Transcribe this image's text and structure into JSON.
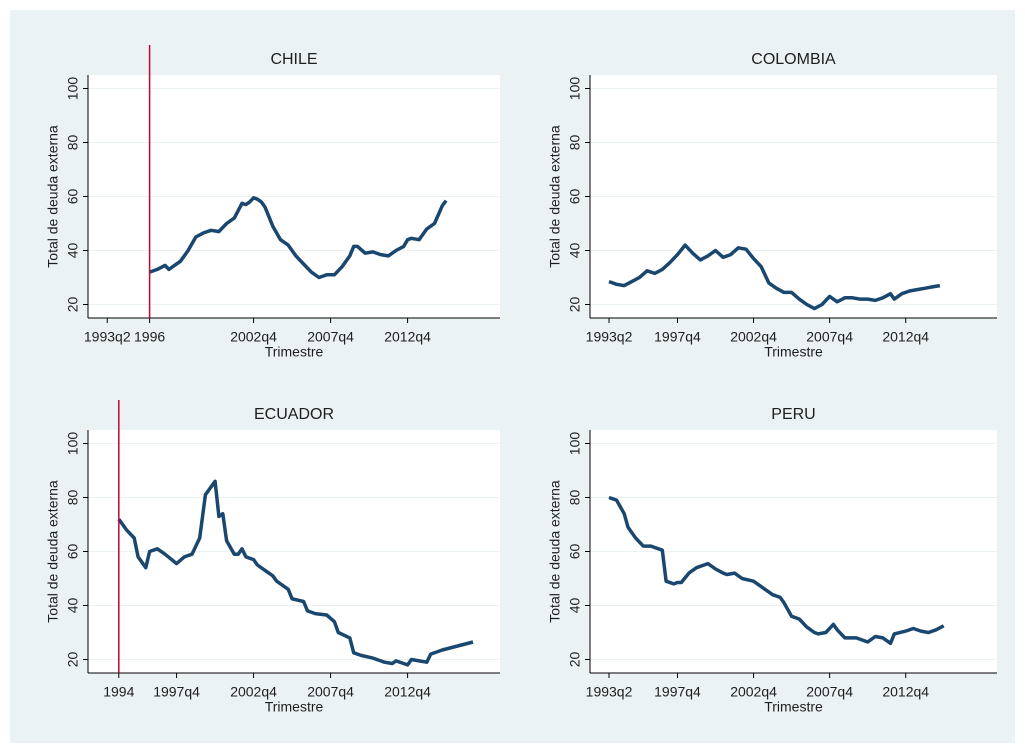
{
  "chart_data": [
    {
      "type": "line",
      "title": "CHILE",
      "x_label": "Trimestre",
      "y_label": "Total de deuda externa",
      "color": "#1a476f",
      "xline": 144,
      "xline_color": "#c10534",
      "grid": true,
      "xlim": [
        128,
        235
      ],
      "ylim": [
        15,
        105
      ],
      "xticks": [
        {
          "value": 133,
          "label": "1993q2"
        },
        {
          "value": 144,
          "label": "1996"
        },
        {
          "value": 171,
          "label": "2002q4"
        },
        {
          "value": 191,
          "label": "2007q4"
        },
        {
          "value": 211,
          "label": "2012q4"
        }
      ],
      "yticks": [
        20,
        40,
        60,
        80,
        100
      ],
      "x": [
        144,
        146,
        148,
        149,
        150,
        152,
        154,
        156,
        158,
        160,
        162,
        164,
        166,
        168,
        169,
        170,
        171,
        172,
        173,
        174,
        176,
        178,
        180,
        182,
        184,
        186,
        188,
        190,
        192,
        194,
        196,
        197,
        198,
        200,
        202,
        204,
        206,
        208,
        210,
        211,
        212,
        214,
        216,
        218,
        220,
        221
      ],
      "values": [
        32,
        33,
        34.5,
        33,
        34,
        36,
        40,
        45,
        46.5,
        47.5,
        47,
        50,
        52,
        57.5,
        57,
        58,
        59.5,
        59,
        58,
        56,
        49,
        44,
        42,
        38,
        35,
        32,
        30,
        31,
        31,
        34,
        38,
        41.5,
        41.5,
        39,
        39.5,
        38.5,
        38,
        40,
        41.5,
        44,
        44.5,
        44,
        48,
        50,
        56.5,
        58.5
      ]
    },
    {
      "type": "line",
      "title": "COLOMBIA",
      "x_label": "Trimestre",
      "y_label": "Total de deuda externa",
      "color": "#1a476f",
      "grid": true,
      "xlim": [
        128,
        235
      ],
      "ylim": [
        15,
        105
      ],
      "xticks": [
        {
          "value": 133,
          "label": "1993q2"
        },
        {
          "value": 151,
          "label": "1997q4"
        },
        {
          "value": 171,
          "label": "2002q4"
        },
        {
          "value": 191,
          "label": "2007q4"
        },
        {
          "value": 211,
          "label": "2012q4"
        }
      ],
      "yticks": [
        20,
        40,
        60,
        80,
        100
      ],
      "x": [
        133,
        135,
        137,
        139,
        141,
        143,
        145,
        147,
        149,
        151,
        153,
        155,
        157,
        159,
        161,
        163,
        165,
        167,
        169,
        171,
        173,
        175,
        177,
        179,
        181,
        183,
        185,
        187,
        189,
        191,
        193,
        195,
        197,
        199,
        201,
        203,
        205,
        207,
        208,
        210,
        212,
        214,
        216,
        218,
        220
      ],
      "values": [
        28.5,
        27.5,
        27,
        28.5,
        30,
        32.5,
        31.5,
        33,
        35.5,
        38.5,
        42,
        39,
        36.5,
        38,
        40,
        37.5,
        38.5,
        41,
        40.5,
        37,
        34,
        28,
        26,
        24.5,
        24.5,
        22,
        20,
        18.5,
        20,
        23,
        21,
        22.5,
        22.5,
        22,
        22,
        21.5,
        22.5,
        24,
        22,
        24,
        25,
        25.5,
        26,
        26.5,
        27
      ]
    },
    {
      "type": "line",
      "title": "ECUADOR",
      "x_label": "Trimestre",
      "y_label": "Total de deuda externa",
      "color": "#1a476f",
      "xline": 136,
      "xline_color": "#c10534",
      "grid": true,
      "xlim": [
        128,
        235
      ],
      "ylim": [
        15,
        105
      ],
      "xticks": [
        {
          "value": 136,
          "label": "1994"
        },
        {
          "value": 151,
          "label": "1997q4"
        },
        {
          "value": 171,
          "label": "2002q4"
        },
        {
          "value": 191,
          "label": "2007q4"
        },
        {
          "value": 211,
          "label": "2012q4"
        }
      ],
      "yticks": [
        20,
        40,
        60,
        80,
        100
      ],
      "x": [
        136,
        138,
        140,
        141,
        142,
        143,
        144,
        146,
        148,
        151,
        153,
        155,
        157,
        158.5,
        160,
        161,
        162,
        163,
        164,
        166,
        167,
        168,
        169,
        171,
        172,
        174,
        176,
        177,
        180,
        181,
        184,
        185,
        187,
        190,
        192,
        193,
        196,
        197,
        199,
        202,
        203,
        205,
        207,
        208,
        211,
        212,
        214,
        216,
        217,
        220,
        224,
        228
      ],
      "values": [
        72,
        68,
        65,
        58,
        56,
        54,
        60,
        61,
        59,
        55.5,
        58,
        59,
        65,
        81,
        84,
        86,
        73,
        74,
        64,
        59,
        59,
        61,
        58,
        57,
        55,
        53,
        51,
        49,
        46,
        42.5,
        41.5,
        38,
        37,
        36.5,
        34,
        30,
        28,
        22.5,
        21.5,
        20.5,
        20,
        19,
        18.5,
        19.5,
        18,
        20,
        19.5,
        19,
        22,
        23.5,
        25,
        26.5
      ]
    },
    {
      "type": "line",
      "title": "PERU",
      "x_label": "Trimestre",
      "y_label": "Total de deuda externa",
      "color": "#1a476f",
      "grid": true,
      "xlim": [
        128,
        235
      ],
      "ylim": [
        15,
        105
      ],
      "xticks": [
        {
          "value": 133,
          "label": "1993q2"
        },
        {
          "value": 151,
          "label": "1997q4"
        },
        {
          "value": 171,
          "label": "2002q4"
        },
        {
          "value": 191,
          "label": "2007q4"
        },
        {
          "value": 211,
          "label": "2012q4"
        }
      ],
      "yticks": [
        20,
        40,
        60,
        80,
        100
      ],
      "x": [
        133,
        135,
        137,
        138,
        140,
        142,
        144,
        146,
        147,
        148,
        150,
        151,
        152,
        154,
        156,
        159,
        161,
        163,
        164,
        166,
        168,
        171,
        172,
        174,
        176,
        178,
        179,
        181,
        183,
        185,
        187,
        188,
        190,
        192,
        193,
        195,
        198,
        201,
        203,
        205,
        207,
        208,
        211,
        213,
        215,
        217,
        219,
        221
      ],
      "values": [
        80,
        79,
        74,
        69,
        65,
        62,
        62,
        61,
        60.5,
        49,
        48,
        48.5,
        48.5,
        52,
        54,
        55.5,
        53.5,
        52,
        51.5,
        52,
        50,
        49,
        48,
        46,
        44,
        43,
        41,
        36,
        35,
        32,
        30,
        29.5,
        30,
        33,
        31,
        28,
        28,
        26.5,
        28.5,
        28,
        26,
        29.5,
        30.5,
        31.5,
        30.5,
        30,
        31,
        32.5
      ]
    }
  ]
}
